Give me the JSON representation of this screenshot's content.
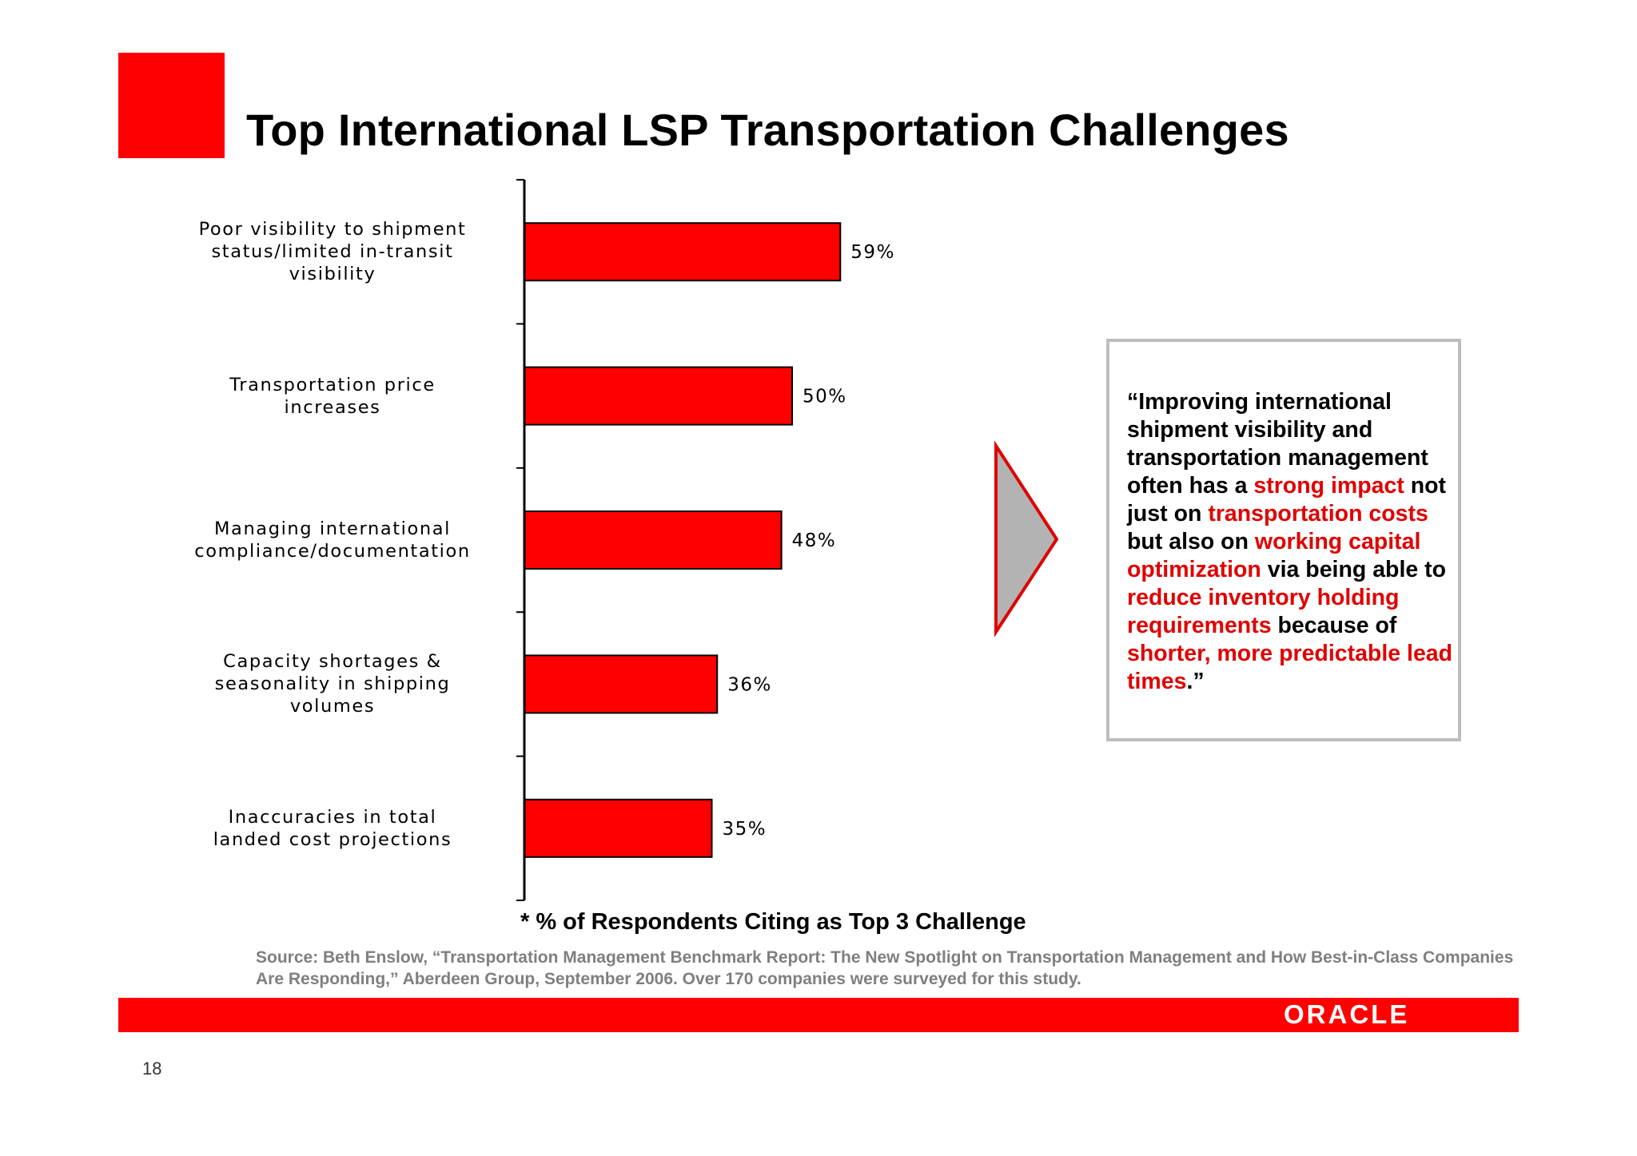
{
  "title": "Top International LSP Transportation Challenges",
  "chart_data": {
    "type": "bar",
    "orientation": "horizontal",
    "categories": [
      [
        "Poor visibility to shipment",
        "status/limited in-transit",
        "visibility"
      ],
      [
        "Transportation price",
        "increases"
      ],
      [
        "Managing international",
        "compliance/documentation"
      ],
      [
        "Capacity shortages &",
        "seasonality in shipping",
        "volumes"
      ],
      [
        "Inaccuracies in total",
        "landed cost projections"
      ]
    ],
    "values": [
      59,
      50,
      48,
      36,
      35
    ],
    "data_labels": [
      "59%",
      "50%",
      "48%",
      "36%",
      "35%"
    ],
    "xlabel": "* % of Respondents Citing as Top 3 Challenge",
    "bar_color": "#ff0000",
    "grid": false
  },
  "quote": {
    "segments": [
      {
        "text": "“Improving international shipment visibility and transportation management often has a ",
        "highlight": false
      },
      {
        "text": "strong impact",
        "highlight": true
      },
      {
        "text": " not just on ",
        "highlight": false
      },
      {
        "text": "transportation costs",
        "highlight": true
      },
      {
        "text": " but also on ",
        "highlight": false
      },
      {
        "text": "working capital optimization",
        "highlight": true
      },
      {
        "text": " via being able to ",
        "highlight": false
      },
      {
        "text": "reduce inventory holding requirements",
        "highlight": true
      },
      {
        "text": " because of ",
        "highlight": false
      },
      {
        "text": "shorter, more predictable lead times",
        "highlight": true
      },
      {
        "text": ".”",
        "highlight": false
      }
    ],
    "highlight_color": "#e00000"
  },
  "source": "Source: Beth Enslow, “Transportation Management Benchmark Report: The New Spotlight on Transportation Management and How Best-in-Class Companies Are Responding,” Aberdeen Group, September 2006. Over 170 companies were surveyed for this study.",
  "footer": {
    "logo": "ORACLE",
    "page_number": "18"
  },
  "colors": {
    "brand_red": "#ff0000",
    "arrow_fill": "#b3b3b3",
    "box_border": "#bdbdbd",
    "source_text": "#7f7f7f"
  }
}
